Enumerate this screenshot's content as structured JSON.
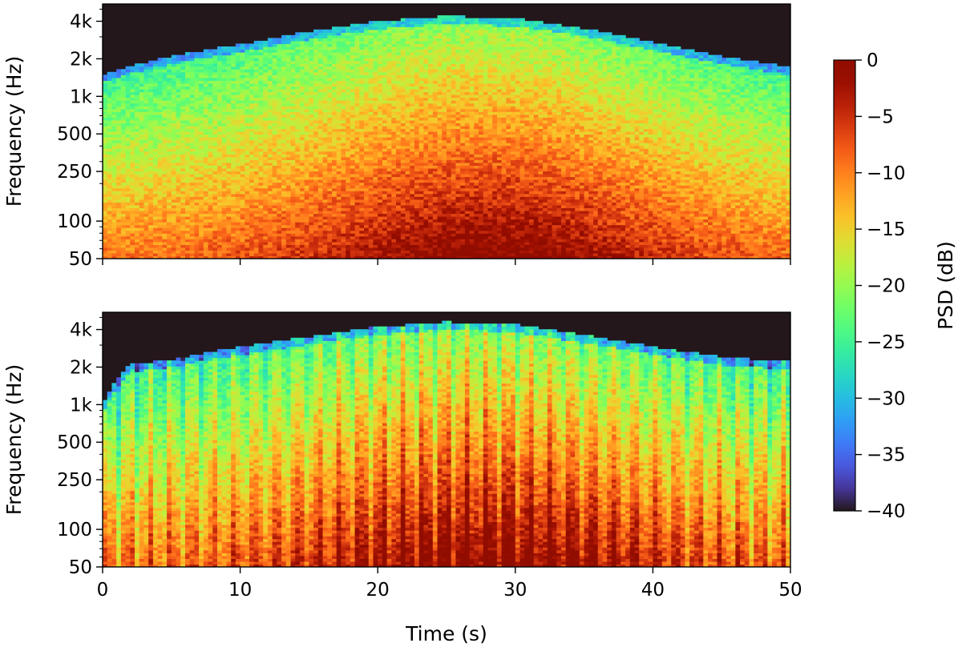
{
  "chart_data": {
    "type": "heatmap",
    "title": "",
    "xlabel": "Time (s)",
    "xlim": [
      0,
      50
    ],
    "xticks": [
      0,
      10,
      20,
      30,
      40,
      50
    ],
    "yscale": "log",
    "colormap": "turbo",
    "subplots": [
      {
        "ylabel": "Frequency (Hz)",
        "ylim": [
          50,
          5500
        ],
        "yticks": [
          50,
          100,
          250,
          500,
          1000,
          2000,
          4000
        ],
        "ytick_labels": [
          "50",
          "100",
          "250",
          "500",
          "1k",
          "2k",
          "4k"
        ],
        "spectral_ceiling_hz": [
          {
            "t": 0,
            "f": 1500
          },
          {
            "t": 5,
            "f": 2100
          },
          {
            "t": 10,
            "f": 2600
          },
          {
            "t": 15,
            "f": 3300
          },
          {
            "t": 20,
            "f": 4000
          },
          {
            "t": 25,
            "f": 4400
          },
          {
            "t": 30,
            "f": 4200
          },
          {
            "t": 35,
            "f": 3500
          },
          {
            "t": 40,
            "f": 2700
          },
          {
            "t": 45,
            "f": 2100
          },
          {
            "t": 50,
            "f": 1700
          }
        ]
      },
      {
        "ylabel": "Frequency (Hz)",
        "ylim": [
          50,
          5500
        ],
        "yticks": [
          50,
          100,
          250,
          500,
          1000,
          2000,
          4000
        ],
        "ytick_labels": [
          "50",
          "100",
          "250",
          "500",
          "1k",
          "2k",
          "4k"
        ],
        "spectral_ceiling_hz": [
          {
            "t": 0,
            "f": 1000
          },
          {
            "t": 2,
            "f": 2100
          },
          {
            "t": 5,
            "f": 2300
          },
          {
            "t": 10,
            "f": 2900
          },
          {
            "t": 15,
            "f": 3500
          },
          {
            "t": 20,
            "f": 4200
          },
          {
            "t": 25,
            "f": 4600
          },
          {
            "t": 30,
            "f": 4400
          },
          {
            "t": 35,
            "f": 3600
          },
          {
            "t": 40,
            "f": 2900
          },
          {
            "t": 45,
            "f": 2400
          },
          {
            "t": 50,
            "f": 2200
          }
        ]
      }
    ],
    "colorbar": {
      "label": "PSD (dB)",
      "range": [
        -40,
        0
      ],
      "ticks": [
        0,
        -5,
        -10,
        -15,
        -20,
        -25,
        -30,
        -35,
        -40
      ],
      "tick_labels": [
        "0",
        "−5",
        "−10",
        "−15",
        "−20",
        "−25",
        "−30",
        "−35",
        "−40"
      ]
    }
  }
}
